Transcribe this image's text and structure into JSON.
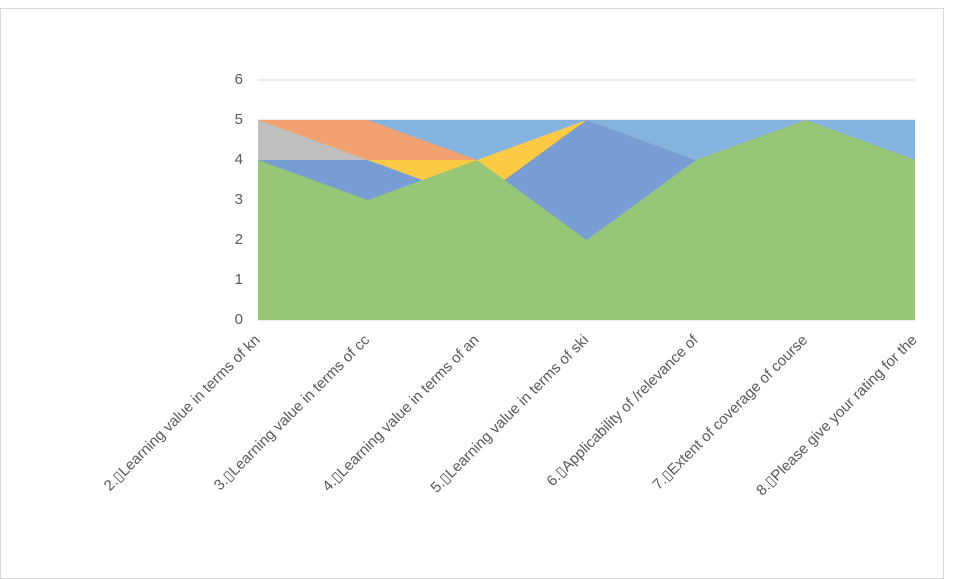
{
  "chart_data": {
    "type": "area",
    "categories": [
      "2.▯Learning value  in terms of kn",
      "3.▯Learning value  in terms of  cc",
      "4.▯Learning value  in terms of an",
      "5.▯Learning value  in terms of ski",
      "6.▯Applicability of /relevance of",
      "7.▯Extent of coverage of course",
      "8.▯Please give your rating for the"
    ],
    "series": [
      {
        "color": "#85b3e0",
        "values": [
          5,
          5,
          5,
          5,
          5,
          5,
          5
        ]
      },
      {
        "color": "#f1a270",
        "values": [
          5,
          5,
          4,
          4,
          4,
          5,
          4
        ]
      },
      {
        "color": "#bfbfbf",
        "values": [
          5,
          4,
          4,
          4,
          4,
          5,
          4
        ]
      },
      {
        "color": "#ffcb45",
        "values": [
          4,
          4,
          4,
          5,
          4,
          5,
          4
        ]
      },
      {
        "color": "#779dd4",
        "values": [
          4,
          4,
          3,
          5,
          4,
          5,
          4
        ]
      },
      {
        "color": "#97c676",
        "values": [
          4,
          3,
          4,
          2,
          4,
          5,
          4
        ]
      }
    ],
    "ylim": [
      0,
      6
    ],
    "yticks": [
      0,
      1,
      2,
      3,
      4,
      5,
      6
    ],
    "grid": true
  }
}
